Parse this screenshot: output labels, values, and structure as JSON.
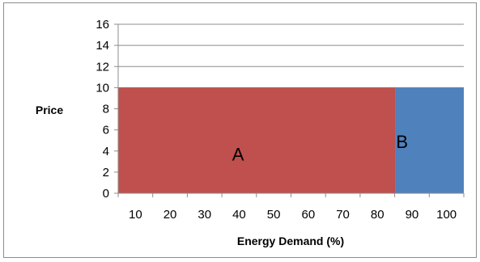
{
  "chart_data": {
    "type": "bar",
    "title": "",
    "xlabel": "Energy Demand (%)",
    "ylabel": "Price",
    "xlim": [
      6,
      104
    ],
    "ylim": [
      0,
      16
    ],
    "yticks": [
      "0",
      "2",
      "4",
      "6",
      "8",
      "10",
      "12",
      "14",
      "16"
    ],
    "xticks": [
      "10",
      "20",
      "30",
      "40",
      "50",
      "60",
      "70",
      "80",
      "90",
      "100"
    ],
    "grid": true,
    "legend": "none",
    "blocks": [
      {
        "label": "A",
        "x_start": 6,
        "x_end": 84.5,
        "value": 10,
        "color": "#c0504d"
      },
      {
        "label": "B",
        "x_start": 84.5,
        "x_end": 104,
        "value": 10,
        "color": "#4f81bd"
      }
    ]
  }
}
